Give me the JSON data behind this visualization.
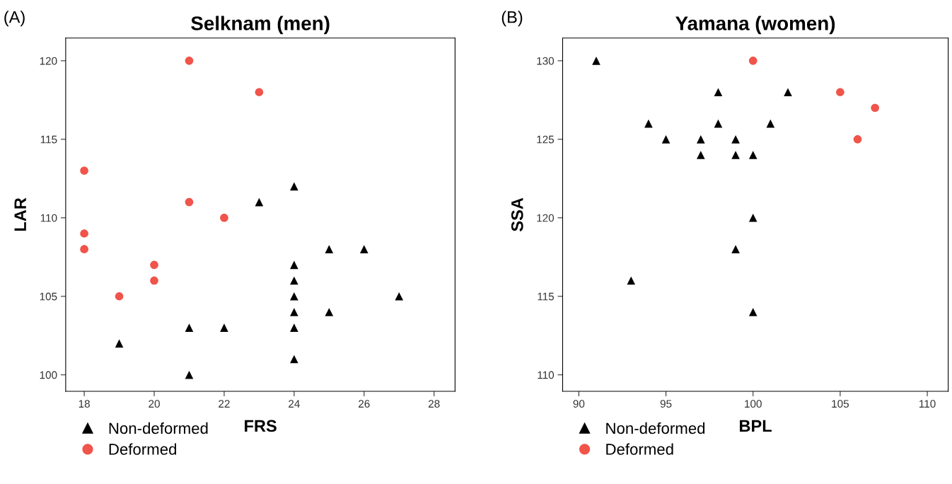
{
  "chart_data": [
    {
      "type": "scatter",
      "title": "Selknam (men)",
      "xlabel": "FRS",
      "ylabel": "LAR",
      "annotations": [
        "(A)"
      ],
      "xlim": [
        17.47,
        28.6
      ],
      "ylim": [
        98.95,
        121.45
      ],
      "xticks": [
        18,
        20,
        22,
        24,
        26,
        28
      ],
      "yticks": [
        100,
        105,
        110,
        115,
        120
      ],
      "grid": false,
      "legend": "bottom left",
      "series": [
        {
          "name": "Non-deformed",
          "color": "#000000",
          "marker": "triangle",
          "x": [
            19,
            21,
            21,
            22,
            23,
            24,
            24,
            24,
            24,
            24,
            24,
            24,
            25,
            25,
            26,
            27
          ],
          "values": [
            102,
            103,
            100,
            103,
            111,
            112,
            107,
            106,
            105,
            104,
            103,
            101,
            108,
            104,
            108,
            105
          ]
        },
        {
          "name": "Deformed",
          "color": "#f0544a",
          "marker": "circle",
          "x": [
            21,
            23,
            18,
            21,
            22,
            18,
            18,
            20,
            20,
            19
          ],
          "values": [
            120,
            118,
            113,
            111,
            110,
            109,
            108,
            107,
            106,
            105
          ]
        }
      ]
    },
    {
      "type": "scatter",
      "title": "Yamana (women)",
      "xlabel": "BPL",
      "ylabel": "SSA",
      "annotations": [
        "(B)"
      ],
      "xlim": [
        89.07,
        111.2
      ],
      "ylim": [
        108.95,
        131.45
      ],
      "xticks": [
        90,
        95,
        100,
        105,
        110
      ],
      "yticks": [
        110,
        115,
        120,
        125,
        130
      ],
      "grid": false,
      "legend": "bottom left",
      "series": [
        {
          "name": "Non-deformed",
          "color": "#000000",
          "marker": "triangle",
          "x": [
            91,
            98,
            102,
            94,
            98,
            101,
            95,
            97,
            99,
            97,
            99,
            100,
            100,
            99,
            93,
            100
          ],
          "values": [
            130,
            128,
            128,
            126,
            126,
            126,
            125,
            125,
            125,
            124,
            124,
            124,
            120,
            118,
            116,
            114
          ]
        },
        {
          "name": "Deformed",
          "color": "#f0544a",
          "marker": "circle",
          "x": [
            100,
            105,
            107,
            106
          ],
          "values": [
            130,
            128,
            127,
            125
          ]
        }
      ]
    }
  ]
}
